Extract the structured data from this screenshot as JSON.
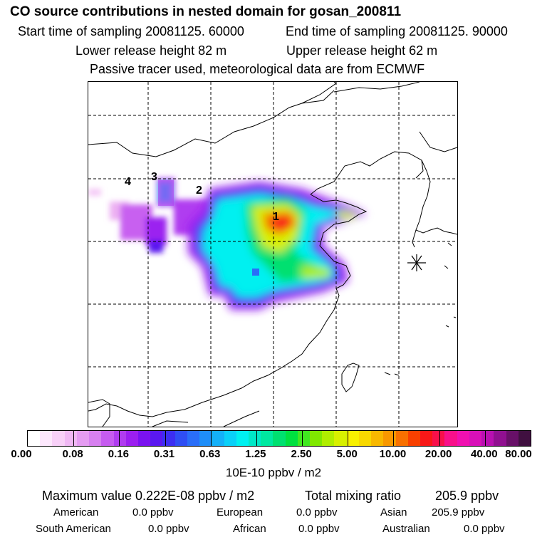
{
  "header": {
    "title": "CO  source contributions in nested domain for gosan_200811",
    "start_label": "Start time of sampling 20081125. 60000",
    "end_label": "End time of sampling 20081125. 90000",
    "lower_label": "Lower release height   82 m",
    "upper_label": "Upper release height   62 m",
    "note": "Passive tracer used, meteorological data are from ECMWF"
  },
  "map": {
    "source_labels": [
      "1",
      "2",
      "3",
      "4"
    ],
    "receptor_icon": "star-icon"
  },
  "colorbar": {
    "colors": [
      "#ffffff",
      "#fde8fd",
      "#f8d0f8",
      "#f0b8f4",
      "#e59cf2",
      "#d780f0",
      "#c65cf0",
      "#b03cf0",
      "#9b1ff0",
      "#7a12f0",
      "#5a18f0",
      "#3c2ef2",
      "#2f4ef4",
      "#2a6ef8",
      "#1f8ef8",
      "#14b0f8",
      "#0ad0f8",
      "#00f0f0",
      "#00e8c8",
      "#00e8a0",
      "#00e070",
      "#00e040",
      "#40e820",
      "#80e800",
      "#b0ee00",
      "#d8f000",
      "#f8f000",
      "#f8d800",
      "#f8b800",
      "#f89800",
      "#f87000",
      "#f84000",
      "#f81818",
      "#f8104a",
      "#f8108a",
      "#f010b0",
      "#d810b8",
      "#b810b0",
      "#901090",
      "#681068",
      "#401040"
    ],
    "ticks": [
      "0.00",
      "0.08",
      "0.16",
      "0.31",
      "0.63",
      "1.25",
      "2.50",
      "5.00",
      "10.00",
      "20.00",
      "40.00",
      "80.00"
    ],
    "unit": "10E-10 ppbv / m2"
  },
  "stats": {
    "max_label": "Maximum value  0.222E-08 ppbv / m2",
    "total_label": "Total mixing ratio",
    "total_value": "205.9 ppbv",
    "rows": [
      [
        {
          "name": "American",
          "value": "0.0 ppbv"
        },
        {
          "name": "European",
          "value": "0.0 ppbv"
        },
        {
          "name": "Asian",
          "value": "205.9 ppbv"
        }
      ],
      [
        {
          "name": "South American",
          "value": "0.0 ppbv"
        },
        {
          "name": "African",
          "value": "0.0 ppbv"
        },
        {
          "name": "Australian",
          "value": "0.0 ppbv"
        }
      ]
    ]
  }
}
